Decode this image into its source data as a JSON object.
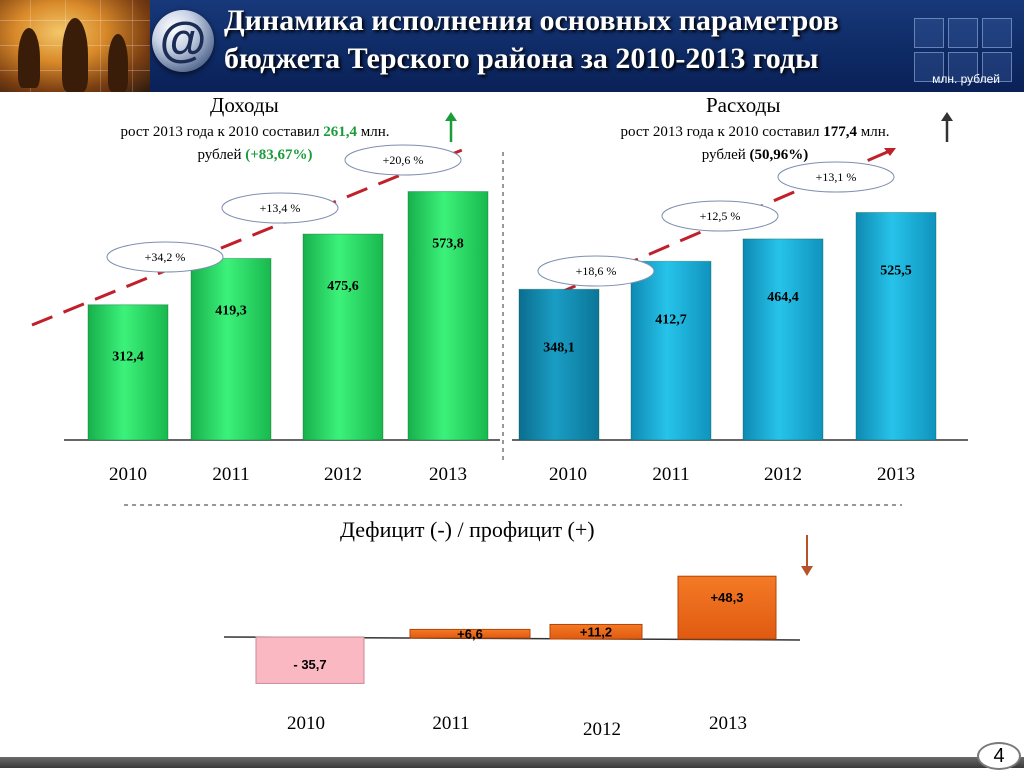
{
  "header": {
    "title_line1": "Динамика исполнения основных параметров",
    "title_line2": "бюджета Терского района за 2010-2013 годы",
    "logo_symbol": "@",
    "unit": "млн. рублей"
  },
  "income": {
    "heading": "Доходы",
    "sub_prefix": "рост 2013 года к 2010 составил ",
    "sub_value": "261,4",
    "sub_suffix": " млн.",
    "sub_line2_prefix": "рублей ",
    "sub_line2_value": "(+83,67%)",
    "arrow_color": "#1a9c3a"
  },
  "expense": {
    "heading": "Расходы",
    "sub_prefix": "рост 2013 года к 2010 составил ",
    "sub_value": "177,4",
    "sub_suffix": " млн.",
    "sub_line2_prefix": "рублей ",
    "sub_line2_value": "(50,96%)",
    "arrow_color": "#333333"
  },
  "deficit": {
    "title": "Дефицит (-) / профицит (+)",
    "arrow_color": "#b5532a"
  },
  "page_number": "4",
  "chart_data": [
    {
      "type": "bar",
      "name": "Доходы",
      "categories": [
        "2010",
        "2011",
        "2012",
        "2013"
      ],
      "values": [
        312.4,
        419.3,
        475.6,
        573.8
      ],
      "value_labels": [
        "312,4",
        "419,3",
        "475,6",
        "573,8"
      ],
      "growth_labels": [
        "+34,2 %",
        "+13,4 %",
        "+20,6 %"
      ],
      "color": "#2ee86a"
    },
    {
      "type": "bar",
      "name": "Расходы",
      "categories": [
        "2010",
        "2011",
        "2012",
        "2013"
      ],
      "values": [
        348.1,
        412.7,
        464.4,
        525.5
      ],
      "value_labels": [
        "348,1",
        "412,7",
        "464,4",
        "525,5"
      ],
      "growth_labels": [
        "+18,6 %",
        "+12,5 %",
        "+13,1 %"
      ],
      "color": "#1fb8e0"
    },
    {
      "type": "bar",
      "name": "Дефицит / профицит",
      "categories": [
        "2010",
        "2011",
        "2012",
        "2013"
      ],
      "values": [
        -35.7,
        6.6,
        11.2,
        48.3
      ],
      "value_labels": [
        "- 35,7",
        "+6,6",
        "+11,2",
        "+48,3"
      ],
      "colors": [
        "#f9b8c2",
        "#ef6a18",
        "#ef6a18",
        "#ef6a18"
      ]
    }
  ]
}
